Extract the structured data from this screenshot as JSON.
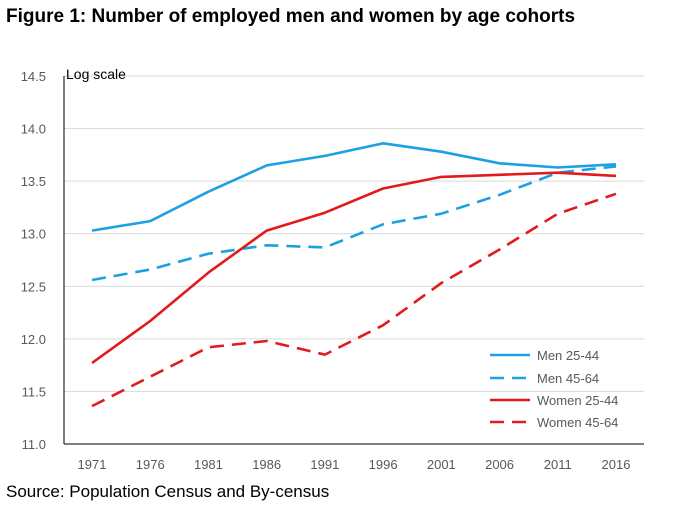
{
  "figure_title": "Figure 1: Number of employed men and women by age cohorts",
  "source_note": "Source: Population Census and By-census",
  "chart_data": {
    "type": "line",
    "title": "",
    "xlabel": "",
    "ylabel": "",
    "axis_note": "Log scale",
    "x": [
      "1971",
      "1976",
      "1981",
      "1986",
      "1991",
      "1996",
      "2001",
      "2006",
      "2011",
      "2016"
    ],
    "yticks": [
      "11.0",
      "11.5",
      "12.0",
      "12.5",
      "13.0",
      "13.5",
      "14.0",
      "14.5"
    ],
    "ylim": [
      11.0,
      14.5
    ],
    "grid": true,
    "legend_position": "lower-right",
    "series": [
      {
        "name": "Men 25-44",
        "color": "#1ba1e2",
        "dash": "solid",
        "values": [
          13.03,
          13.12,
          13.4,
          13.65,
          13.74,
          13.86,
          13.78,
          13.67,
          13.63,
          13.66
        ]
      },
      {
        "name": "Men 45-64",
        "color": "#1ba1e2",
        "dash": "dashed",
        "values": [
          12.56,
          12.66,
          12.81,
          12.89,
          12.87,
          13.09,
          13.19,
          13.37,
          13.58,
          13.64
        ]
      },
      {
        "name": "Women 25-44",
        "color": "#e31a1c",
        "dash": "solid",
        "values": [
          11.77,
          12.17,
          12.63,
          13.03,
          13.2,
          13.43,
          13.54,
          13.56,
          13.58,
          13.55
        ]
      },
      {
        "name": "Women 45-64",
        "color": "#e31a1c",
        "dash": "dashed",
        "values": [
          11.36,
          11.64,
          11.92,
          11.98,
          11.85,
          12.13,
          12.53,
          12.85,
          13.19,
          13.38
        ]
      }
    ]
  }
}
